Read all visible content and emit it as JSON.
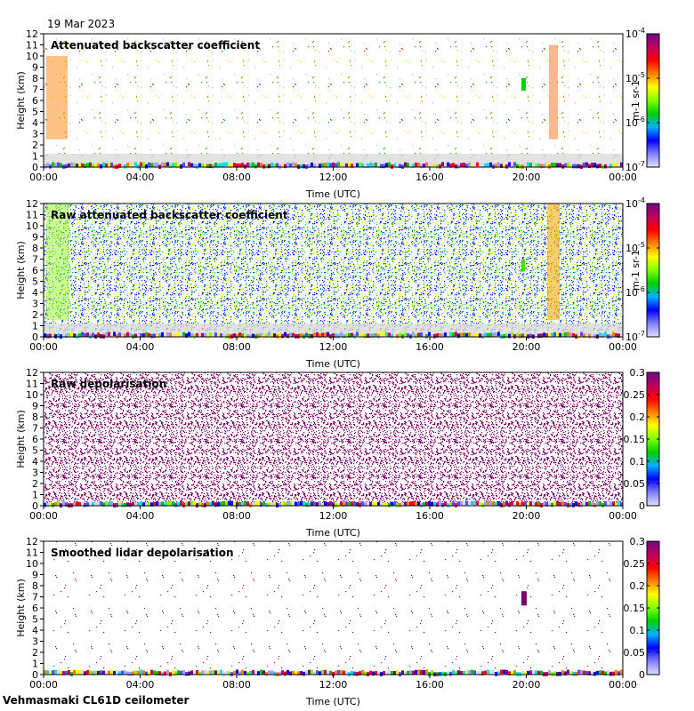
{
  "header": {
    "date": "19 Mar 2023"
  },
  "footer": {
    "site": "Vehmasmaki CL61D ceilometer"
  },
  "chart_data": [
    {
      "type": "heatmap",
      "title": "Attenuated backscatter coefficient",
      "xlabel": "Time (UTC)",
      "ylabel": "Height (km)",
      "xticks": [
        "00:00",
        "04:00",
        "08:00",
        "12:00",
        "16:00",
        "20:00",
        "00:00"
      ],
      "yticks": [
        0,
        1,
        2,
        3,
        4,
        5,
        6,
        7,
        8,
        9,
        10,
        11,
        12
      ],
      "ylim": [
        0,
        12
      ],
      "colorbar": {
        "scale": "log",
        "ticks": [
          "10^-7",
          "10^-6",
          "10^-5",
          "10^-4"
        ],
        "units": "m^-1 sr^-1",
        "range": [
          1e-07,
          0.0001
        ]
      }
    },
    {
      "type": "heatmap",
      "title": "Raw attenuated backscatter coefficient",
      "xlabel": "Time (UTC)",
      "ylabel": "Height (km)",
      "xticks": [
        "00:00",
        "04:00",
        "08:00",
        "12:00",
        "16:00",
        "20:00",
        "00:00"
      ],
      "yticks": [
        0,
        1,
        2,
        3,
        4,
        5,
        6,
        7,
        8,
        9,
        10,
        11,
        12
      ],
      "ylim": [
        0,
        12
      ],
      "colorbar": {
        "scale": "log",
        "ticks": [
          "10^-7",
          "10^-6",
          "10^-5",
          "10^-4"
        ],
        "units": "m^-1 sr^-1",
        "range": [
          1e-07,
          0.0001
        ]
      }
    },
    {
      "type": "heatmap",
      "title": "Raw depolarisation",
      "xlabel": "Time (UTC)",
      "ylabel": "Height (km)",
      "xticks": [
        "00:00",
        "04:00",
        "08:00",
        "12:00",
        "16:00",
        "20:00",
        "00:00"
      ],
      "yticks": [
        0,
        1,
        2,
        3,
        4,
        5,
        6,
        7,
        8,
        9,
        10,
        11,
        12
      ],
      "ylim": [
        0,
        12
      ],
      "colorbar": {
        "scale": "linear",
        "ticks": [
          "0",
          "0.05",
          "0.1",
          "0.15",
          "0.2",
          "0.25",
          "0.3"
        ],
        "range": [
          0,
          0.3
        ]
      }
    },
    {
      "type": "heatmap",
      "title": "Smoothed lidar depolarisation",
      "xlabel": "Time (UTC)",
      "ylabel": "Height (km)",
      "xticks": [
        "00:00",
        "04:00",
        "08:00",
        "12:00",
        "16:00",
        "20:00",
        "00:00"
      ],
      "yticks": [
        0,
        1,
        2,
        3,
        4,
        5,
        6,
        7,
        8,
        9,
        10,
        11,
        12
      ],
      "ylim": [
        0,
        12
      ],
      "colorbar": {
        "scale": "linear",
        "ticks": [
          "0",
          "0.05",
          "0.1",
          "0.15",
          "0.2",
          "0.25",
          "0.3"
        ],
        "range": [
          0,
          0.3
        ]
      }
    }
  ]
}
